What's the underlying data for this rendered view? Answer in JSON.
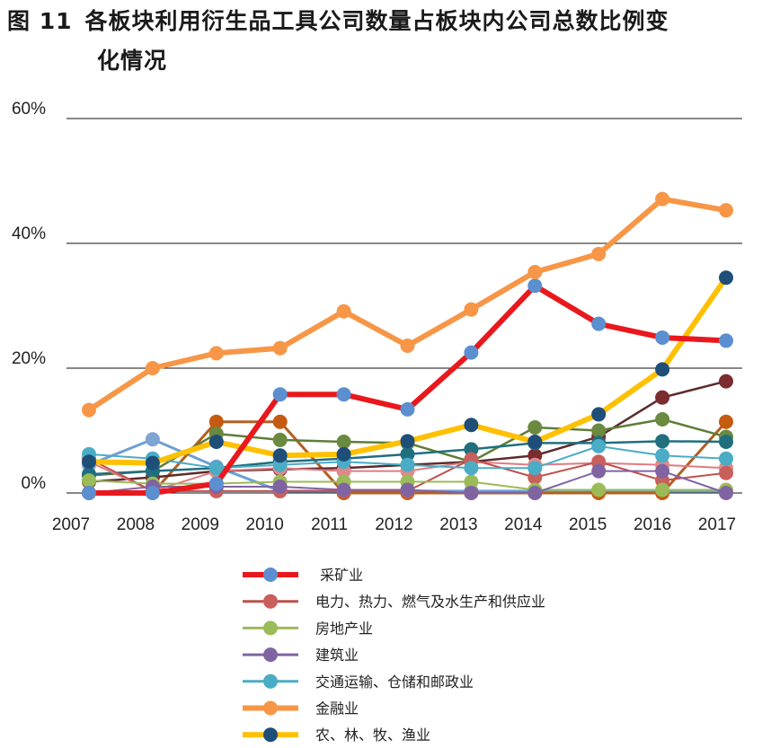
{
  "figure": {
    "label": "图 11",
    "title_line1": "各板块利用衍生品工具公司数量占板块内公司总数比例变",
    "title_line2": "化情况"
  },
  "chart_data": {
    "type": "line",
    "categories": [
      "2007",
      "2008",
      "2009",
      "2010",
      "2011",
      "2012",
      "2013",
      "2014",
      "2015",
      "2016",
      "2017"
    ],
    "y_ticks": [
      "0%",
      "20%",
      "40%",
      "60%"
    ],
    "ylim": [
      0,
      60
    ],
    "grid": true,
    "legend_placement": "bottom-center",
    "series": [
      {
        "name": " 采矿业",
        "line_color": "#e8181d",
        "marker_color": "#5b8fd0",
        "line_width": 6,
        "values": [
          0,
          0,
          1.5,
          15.8,
          15.8,
          13.4,
          22.5,
          33.2,
          27.1,
          24.9,
          24.4
        ]
      },
      {
        "name": "电力、热力、燃气及水生产和供应业",
        "line_color": "#c0504d",
        "marker_color": "#c95f5c",
        "line_width": 2,
        "values": [
          5.5,
          0.3,
          0.3,
          0.3,
          0.3,
          0.3,
          5.4,
          2.5,
          5.0,
          2.0,
          3.2
        ]
      },
      {
        "name": "房地产业",
        "line_color": "#9bbb59",
        "marker_color": "#9bbb59",
        "line_width": 2,
        "values": [
          2.0,
          1.5,
          1.5,
          1.8,
          1.8,
          1.8,
          1.8,
          0.5,
          0.5,
          0.5,
          0.5
        ]
      },
      {
        "name": "建筑业",
        "line_color": "#8064a2",
        "marker_color": "#8064a2",
        "line_width": 2,
        "values": [
          0,
          1.0,
          1.0,
          1.0,
          0.5,
          0.5,
          0,
          0,
          3.5,
          3.5,
          0
        ]
      },
      {
        "name": "交通运输、仓储和邮政业",
        "line_color": "#4bacc6",
        "marker_color": "#4bacc6",
        "line_width": 2,
        "values": [
          6.2,
          5.5,
          4.0,
          4.5,
          5.0,
          4.5,
          4.0,
          4.0,
          7.5,
          6.0,
          5.5
        ]
      },
      {
        "name": "金融业",
        "line_color": "#f79646",
        "marker_color": "#f79646",
        "line_width": 6,
        "values": [
          13.3,
          20.0,
          22.4,
          23.2,
          29.1,
          23.6,
          29.4,
          35.4,
          38.3,
          47.1,
          45.3
        ]
      },
      {
        "name": "农、林、牧、渔业",
        "line_color": "#ffc000",
        "marker_color": "#1f4e79",
        "line_width": 6,
        "values": [
          5.0,
          4.8,
          8.2,
          6.0,
          6.2,
          8.3,
          10.9,
          8.2,
          12.6,
          19.8,
          34.5
        ]
      }
    ],
    "unlabeled_series": [
      {
        "line_color": "#6f9fd3",
        "marker_color": "#7ea4d2",
        "line_width": 3,
        "values": [
          4.5,
          8.6,
          4.2,
          0.3,
          0.3,
          0.3,
          0.3,
          0.3,
          0.3,
          0.3,
          0.3
        ]
      },
      {
        "line_color": "#b35f20",
        "marker_color": "#c55a11",
        "line_width": 3,
        "values": [
          0,
          0,
          11.4,
          11.4,
          0,
          0,
          0,
          0,
          0,
          0,
          11.4
        ]
      },
      {
        "line_color": "#5d2a2c",
        "marker_color": "#7b2c2e",
        "line_width": 2.5,
        "values": [
          1.8,
          2.5,
          3.5,
          3.8,
          4.0,
          4.5,
          5.0,
          6.0,
          9.0,
          15.3,
          17.9
        ]
      },
      {
        "line_color": "#5f7d38",
        "marker_color": "#6a8a3f",
        "line_width": 2.5,
        "values": [
          2.8,
          3.5,
          9.5,
          8.5,
          8.2,
          8.0,
          5.0,
          10.5,
          10.0,
          11.8,
          9.0
        ]
      },
      {
        "line_color": "#1f6f7f",
        "marker_color": "#1f6f7f",
        "line_width": 2.5,
        "values": [
          3.0,
          3.5,
          4.0,
          5.0,
          5.5,
          6.2,
          7.0,
          8.0,
          8.0,
          8.3,
          8.2
        ]
      },
      {
        "line_color": "#e07b80",
        "marker_color": "#df8a8a",
        "line_width": 2,
        "values": [
          5.0,
          0.3,
          3.5,
          4.0,
          3.5,
          3.5,
          5.0,
          4.5,
          4.8,
          4.5,
          4.0
        ]
      }
    ]
  }
}
